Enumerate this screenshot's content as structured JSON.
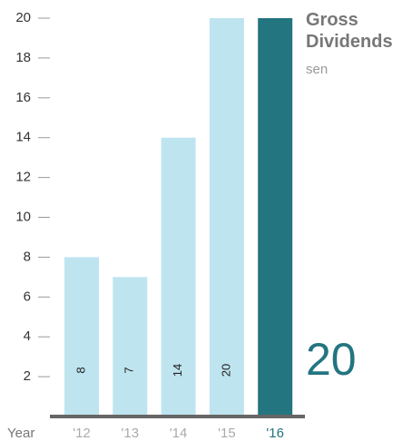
{
  "chart_data": {
    "type": "bar",
    "title": "Gross Dividends",
    "subtitle": "sen",
    "x_label": "Year",
    "categories": [
      "'12",
      "'13",
      "'14",
      "'15",
      "'16"
    ],
    "values": [
      8,
      7,
      14,
      20,
      20
    ],
    "color": "#bee4ef",
    "highlight_color": "#237580",
    "ylim": [
      0,
      20
    ],
    "yticks": [
      2,
      4,
      6,
      8,
      10,
      12,
      14,
      16,
      18,
      20
    ]
  }
}
